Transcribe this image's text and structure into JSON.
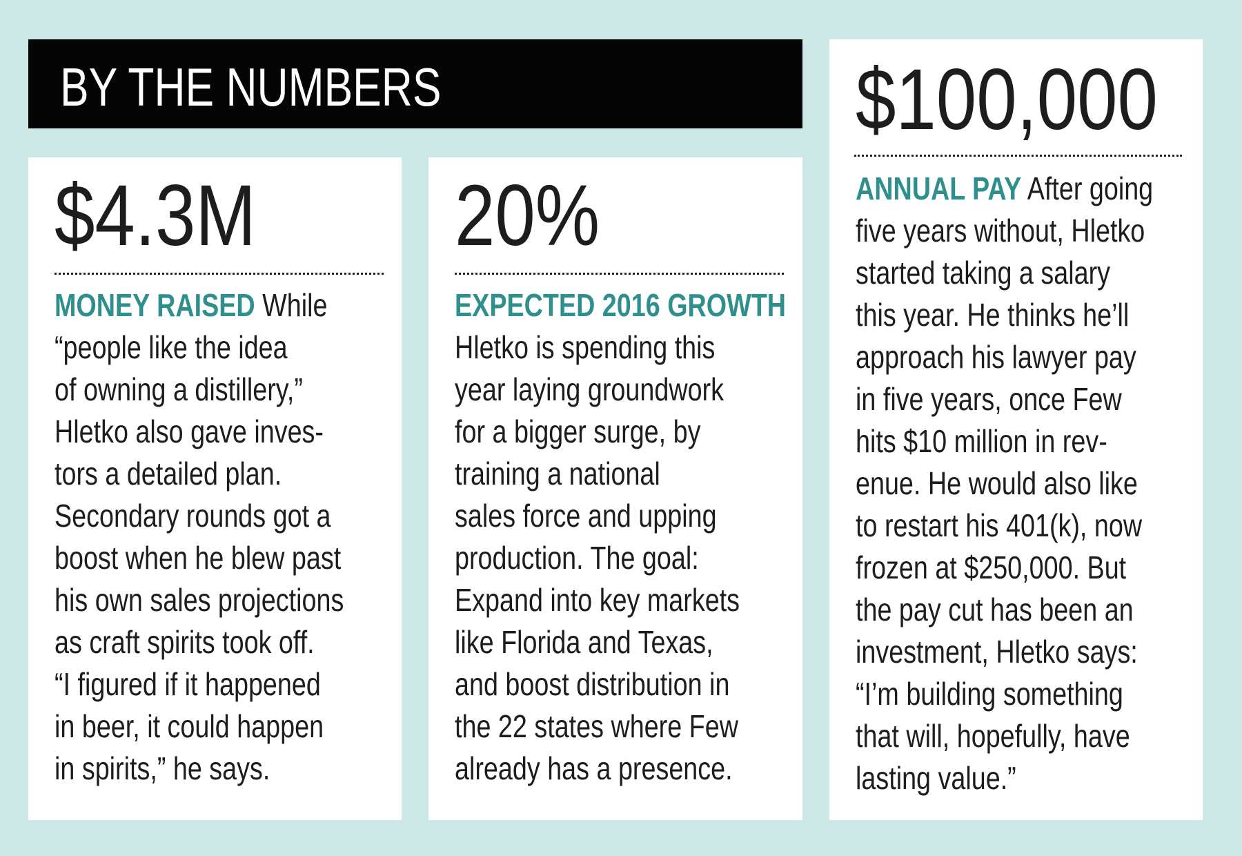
{
  "header": {
    "title": "BY THE NUMBERS"
  },
  "cards": [
    {
      "number": "$4.3M",
      "label": "MONEY RAISED",
      "first_line_rest": " While",
      "lines": [
        "“people like the idea",
        "of owning a distillery,”",
        "Hletko also gave inves-",
        "tors a detailed plan.",
        "Secondary rounds got a",
        "boost when he blew past",
        "his own sales projections",
        "as craft spirits took off.",
        "“I figured if it happened",
        "in beer, it could happen",
        "in spirits,” he says."
      ]
    },
    {
      "number": "20%",
      "label": "EXPECTED 2016 GROWTH",
      "first_line_rest": "",
      "lines": [
        "Hletko is spending this",
        "year laying groundwork",
        "for a bigger surge, by",
        "training a national",
        "sales force and upping",
        "production. The goal:",
        "Expand into key markets",
        "like Florida and Texas,",
        "and boost distribution in",
        "the 22 states where Few",
        "already has a presence."
      ]
    },
    {
      "number": "$100,000",
      "label": "ANNUAL PAY",
      "first_line_rest": " After going",
      "lines": [
        "five years without, Hletko",
        "started taking a salary",
        "this year. He thinks he’ll",
        "approach his lawyer pay",
        "in five years, once Few",
        "hits $10 million in rev-",
        "enue. He would also like",
        "to restart his 401(k), now",
        "frozen at $250,000. But",
        "the pay cut has been an",
        "investment, Hletko says:",
        "“I’m building something",
        "that will, hopefully, have",
        "lasting value.”"
      ]
    }
  ],
  "colors": {
    "background": "#cce9e8",
    "accent": "#2e8f8c",
    "header_bg": "#050505"
  }
}
